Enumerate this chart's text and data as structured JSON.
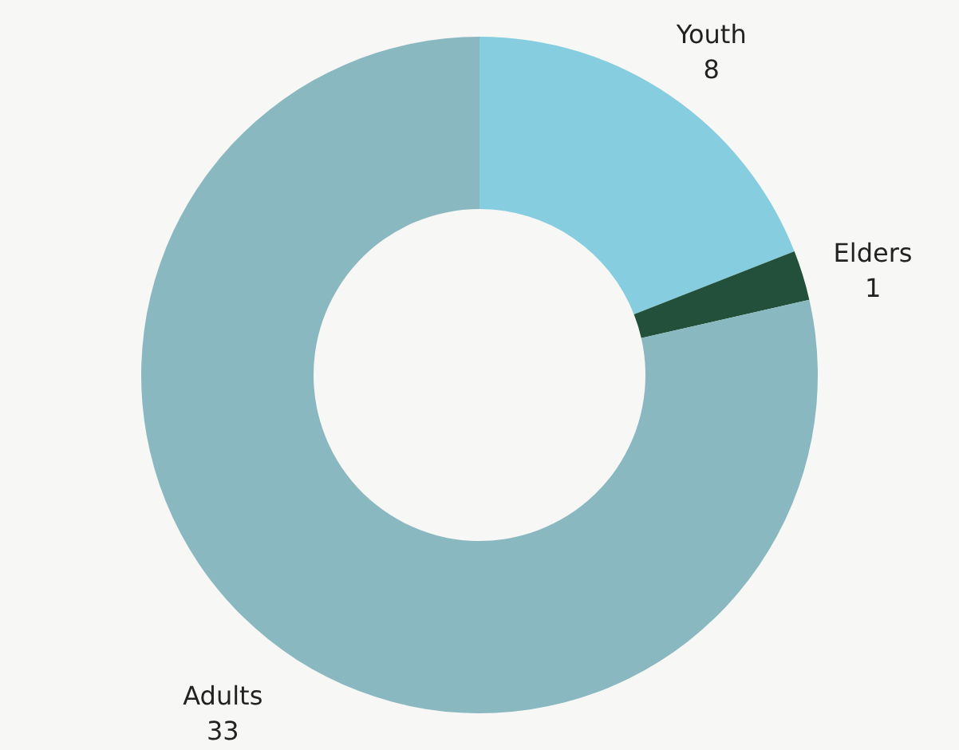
{
  "chart_data": {
    "type": "donut",
    "categories": [
      "Youth",
      "Elders",
      "Adults"
    ],
    "values": [
      8,
      1,
      33
    ],
    "colors": [
      "#86cde0",
      "#22503a",
      "#8ab8c0"
    ],
    "data_labels": true
  }
}
